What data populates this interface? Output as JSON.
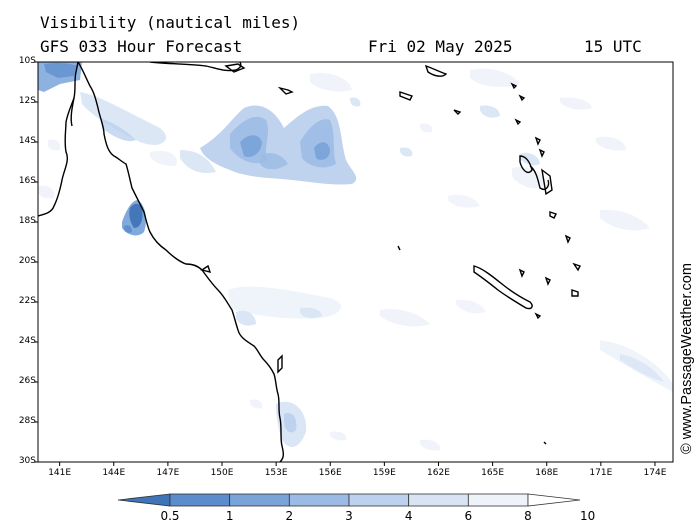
{
  "title": {
    "line1": "Visibility (nautical miles)",
    "forecast": "GFS 033 Hour Forecast",
    "date": "Fri 02 May 2025",
    "time": "15 UTC"
  },
  "credit": "© www.PassageWeather.com",
  "map": {
    "lat_labels": [
      "10S",
      "12S",
      "14S",
      "16S",
      "18S",
      "20S",
      "22S",
      "24S",
      "26S",
      "28S",
      "30S"
    ],
    "lon_labels": [
      "141E",
      "144E",
      "147E",
      "150E",
      "153E",
      "156E",
      "159E",
      "162E",
      "165E",
      "168E",
      "171E",
      "174E"
    ],
    "extent": {
      "lon_min": 139.8,
      "lon_max": 175,
      "lat_top": -10,
      "lat_bottom": -30
    }
  },
  "colorbar": {
    "labels": [
      "0.5",
      "1",
      "2",
      "3",
      "4",
      "6",
      "8",
      "10"
    ],
    "colors": [
      "#3f74b8",
      "#5b8ccc",
      "#7aa4d9",
      "#9cbbe4",
      "#bcd1ed",
      "#d8e4f4",
      "#eef3fa",
      "#ffffff"
    ]
  }
}
